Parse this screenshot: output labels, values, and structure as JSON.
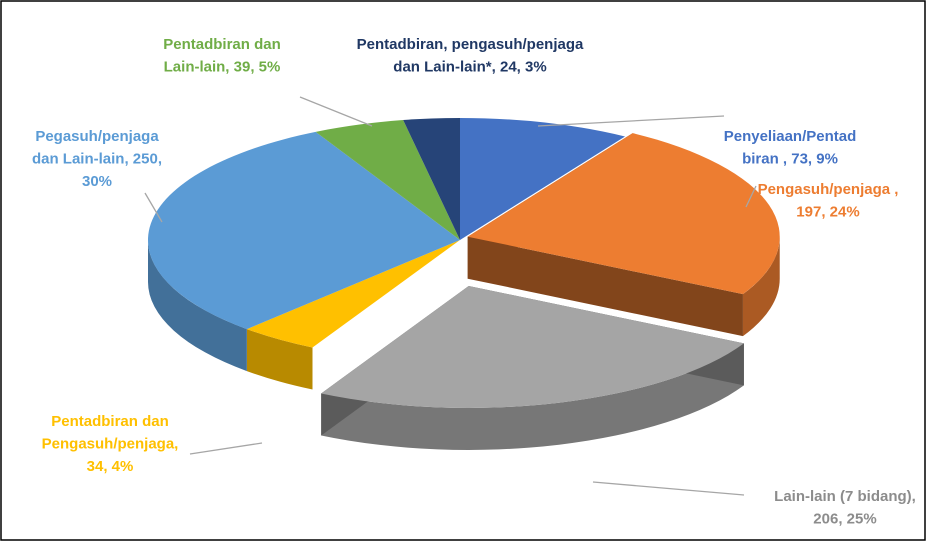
{
  "chart_data": {
    "type": "pie",
    "values": [
      73,
      197,
      206,
      34,
      250,
      39,
      24
    ],
    "value_labels": [
      [
        "Penyeliaan/Pentad",
        "biran , 73, 9%"
      ],
      [
        "Pengasuh/penjaga ,",
        "197, 24%"
      ],
      [
        "Lain-lain (7 bidang),",
        "206, 25%"
      ],
      [
        "Pentadbiran dan",
        "Pengasuh/penjaga,",
        "34, 4%"
      ],
      [
        "Pegasuh/penjaga",
        "dan Lain-lain, 250,",
        "30%"
      ],
      [
        "Pentadbiran dan",
        "Lain-lain, 39, 5%"
      ],
      [
        "Pentadbiran, pengasuh/penjaga",
        "dan  Lain-lain*, 24, 3%"
      ]
    ],
    "colors": [
      "#4472c4",
      "#ed7d31",
      "#a5a5a5",
      "#ffc000",
      "#5b9bd5",
      "#70ad47",
      "#264478"
    ],
    "label_colors": [
      "#4472c4",
      "#ed7d31",
      "#8c8c8c",
      "#ffc000",
      "#5b9bd5",
      "#70ad47",
      "#203864"
    ]
  }
}
